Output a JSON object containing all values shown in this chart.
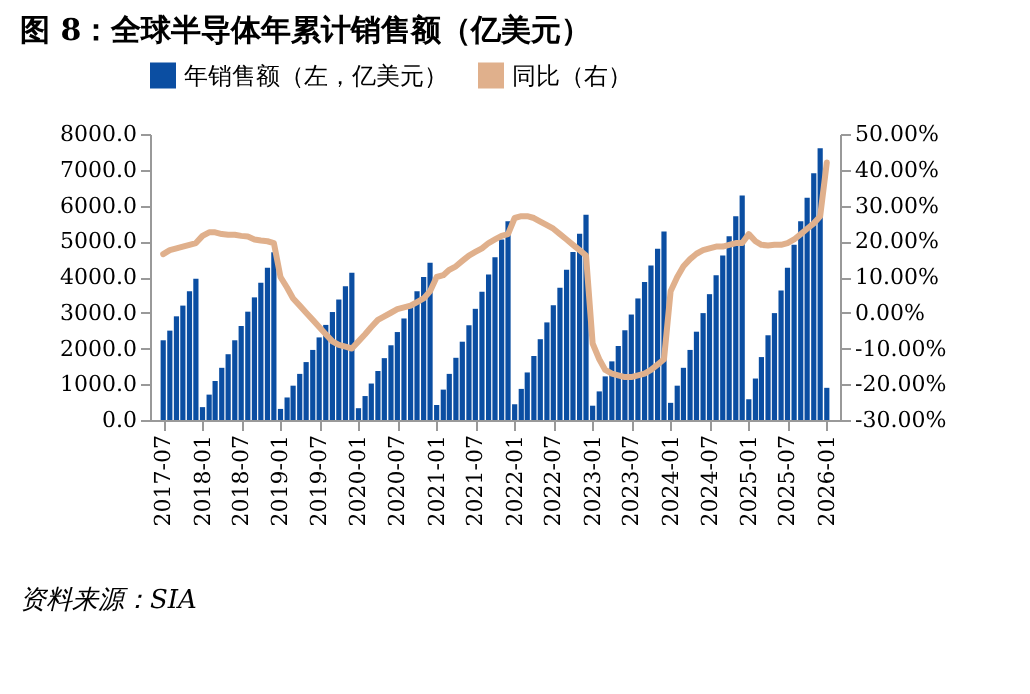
{
  "chart_data": {
    "type": "bar",
    "title": "图 8：全球半导体年累计销售额（亿美元）",
    "annotations": [
      "资料来源：SIA"
    ],
    "legend": "top",
    "xlim": [
      "2017-06-16",
      "2026-01-16"
    ],
    "xticks": [
      "2017-07",
      "2018-01",
      "2018-07",
      "2019-01",
      "2019-07",
      "2020-01",
      "2020-07",
      "2021-01",
      "2021-07",
      "2022-01",
      "2022-07",
      "2023-01",
      "2023-07",
      "2024-01",
      "2024-07",
      "2025-01",
      "2025-07",
      "2026-01"
    ],
    "ylim": [
      0,
      8000
    ],
    "yticks": [
      {
        "value": 0,
        "label": "0.0"
      },
      {
        "value": 1000,
        "label": "1000.0"
      },
      {
        "value": 2000,
        "label": "2000.0"
      },
      {
        "value": 3000,
        "label": "3000.0"
      },
      {
        "value": 4000,
        "label": "4000.0"
      },
      {
        "value": 5000,
        "label": "5000.0"
      },
      {
        "value": 6000,
        "label": "6000.0"
      },
      {
        "value": 7000,
        "label": "7000.0"
      },
      {
        "value": 8000,
        "label": "8000.0"
      }
    ],
    "y2lim": [
      -30,
      50
    ],
    "y2ticks": [
      {
        "value": -30,
        "label": "-30.00%"
      },
      {
        "value": -20,
        "label": "-20.00%"
      },
      {
        "value": -10,
        "label": "-10.00%"
      },
      {
        "value": 0,
        "label": "0.00%"
      },
      {
        "value": 10,
        "label": "10.00%"
      },
      {
        "value": 20,
        "label": "20.00%"
      },
      {
        "value": 30,
        "label": "30.00%"
      },
      {
        "value": 40,
        "label": "40.00%"
      },
      {
        "value": 50,
        "label": "50.00%"
      }
    ],
    "x": [
      "2017-07",
      "2017-08",
      "2017-09",
      "2017-10",
      "2017-11",
      "2017-12",
      "2018-01",
      "2018-02",
      "2018-03",
      "2018-04",
      "2018-05",
      "2018-06",
      "2018-07",
      "2018-08",
      "2018-09",
      "2018-10",
      "2018-11",
      "2018-12",
      "2019-01",
      "2019-02",
      "2019-03",
      "2019-04",
      "2019-05",
      "2019-06",
      "2019-07",
      "2019-08",
      "2019-09",
      "2019-10",
      "2019-11",
      "2019-12",
      "2020-01",
      "2020-02",
      "2020-03",
      "2020-04",
      "2020-05",
      "2020-06",
      "2020-07",
      "2020-08",
      "2020-09",
      "2020-10",
      "2020-11",
      "2020-12",
      "2021-01",
      "2021-02",
      "2021-03",
      "2021-04",
      "2021-05",
      "2021-06",
      "2021-07",
      "2021-08",
      "2021-09",
      "2021-10",
      "2021-11",
      "2021-12",
      "2022-01",
      "2022-02",
      "2022-03",
      "2022-04",
      "2022-05",
      "2022-06",
      "2022-07",
      "2022-08",
      "2022-09",
      "2022-10",
      "2022-11",
      "2022-12",
      "2023-01",
      "2023-02",
      "2023-03",
      "2023-04",
      "2023-05",
      "2023-06",
      "2023-07",
      "2023-08",
      "2023-09",
      "2023-10",
      "2023-11",
      "2023-12",
      "2024-01",
      "2024-02",
      "2024-03",
      "2024-04",
      "2024-05",
      "2024-06",
      "2024-07",
      "2024-08",
      "2024-09",
      "2024-10",
      "2024-11",
      "2024-12",
      "2025-01",
      "2025-02",
      "2025-03",
      "2025-04",
      "2025-05",
      "2025-06",
      "2025-07",
      "2025-08",
      "2025-09",
      "2025-10",
      "2025-11",
      "2025-12",
      "2026-01"
    ],
    "series": [
      {
        "name": "年销售额（左，亿美元）",
        "color": "#0b4ea2",
        "values": [
          2230,
          2500,
          2900,
          3200,
          3600,
          3950,
          360,
          710,
          1090,
          1460,
          1840,
          2230,
          2630,
          3030,
          3430,
          3840,
          4260,
          4690,
          310,
          630,
          960,
          1290,
          1620,
          1960,
          2310,
          2660,
          3020,
          3370,
          3740,
          4120,
          330,
          670,
          1020,
          1370,
          1730,
          2090,
          2460,
          2840,
          3220,
          3600,
          4000,
          4400,
          420,
          850,
          1290,
          1740,
          2190,
          2650,
          3110,
          3590,
          4070,
          4550,
          5050,
          5560,
          440,
          870,
          1330,
          1790,
          2260,
          2730,
          3210,
          3700,
          4200,
          4700,
          5210,
          5740,
          400,
          800,
          1220,
          1640,
          2070,
          2510,
          2950,
          3400,
          3860,
          4320,
          4790,
          5270,
          480,
          960,
          1460,
          1960,
          2470,
          2990,
          3520,
          4050,
          4600,
          5140,
          5700,
          6280,
          580,
          1160,
          1760,
          2370,
          2990,
          3620,
          4260,
          4900,
          5560,
          6220,
          6900,
          7600,
          900
        ]
      },
      {
        "name": "同比（右）",
        "type": "line",
        "axis": "y2",
        "color": "#e0b08c",
        "values": [
          16.4,
          17.5,
          18,
          18.5,
          19,
          19.5,
          21.5,
          22.5,
          22.5,
          22,
          21.8,
          21.8,
          21.5,
          21.3,
          20.5,
          20.2,
          20,
          19.5,
          10,
          7,
          4,
          2,
          0,
          -2,
          -4,
          -6,
          -8,
          -9,
          -9.5,
          -10,
          -8,
          -6,
          -4,
          -2,
          -1,
          0,
          1,
          1.5,
          2,
          3,
          4,
          6,
          10,
          10.5,
          12,
          13,
          14.5,
          16,
          17,
          18,
          19.5,
          20.5,
          21.5,
          22,
          26.5,
          27,
          27,
          26.5,
          25.5,
          24.5,
          23.5,
          22,
          20.5,
          19,
          17.5,
          16,
          -8.6,
          -13,
          -16,
          -17,
          -17.5,
          -18,
          -18,
          -17.5,
          -17,
          -16,
          -14.5,
          -13,
          6,
          10,
          13,
          15,
          16.5,
          17.5,
          18,
          18.5,
          18.5,
          19,
          19.5,
          19.5,
          22,
          20,
          19,
          18.8,
          19,
          19,
          19.5,
          20.5,
          22,
          23.5,
          25,
          27,
          42
        ]
      }
    ]
  }
}
